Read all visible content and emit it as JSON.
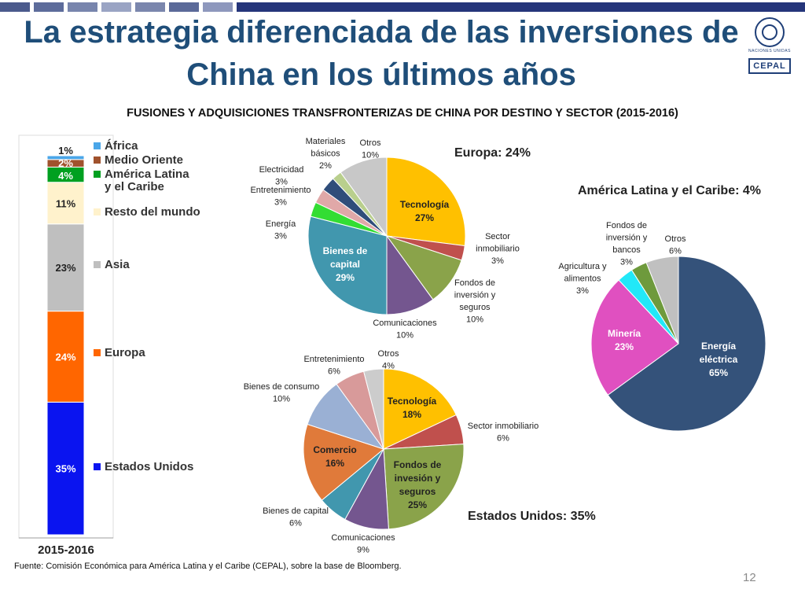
{
  "header": {
    "title_line1": "La estrategia diferenciada de las inversiones de",
    "title_line2": "China en los últimos años",
    "logo_text": "CEPAL",
    "un_text": "NACIONES UNIDAS"
  },
  "subtitle": "FUSIONES Y ADQUISICIONES TRANSFRONTERIZAS DE CHINA POR DESTINO  Y SECTOR (2015-2016)",
  "footer": {
    "source": "Fuente: Comisión Económica para América Latina y el Caribe (CEPAL), sobre la base de  Bloomberg.",
    "page": "12"
  },
  "colors": {
    "title": "#1f4e79",
    "bar_frame": "#1f4e79"
  },
  "chart_data": [
    {
      "type": "stacked-bar",
      "category": "2015-2016",
      "segments": [
        {
          "name": "Estados Unidos",
          "value": 35,
          "label": "35%",
          "color": "#0a14f0"
        },
        {
          "name": "Europa",
          "value": 24,
          "label": "24%",
          "color": "#ff6600"
        },
        {
          "name": "Asia",
          "value": 23,
          "label": "23%",
          "color": "#bfbfbf"
        },
        {
          "name": "Resto del mundo",
          "value": 11,
          "label": "11%",
          "color": "#fff2cc"
        },
        {
          "name": "América Latina y el Caribe",
          "value": 4,
          "label": "4%",
          "color": "#00a020"
        },
        {
          "name": "Medio Oriente",
          "value": 2,
          "label": "2%",
          "color": "#a0522d"
        },
        {
          "name": "África",
          "value": 1,
          "label": "1%",
          "color": "#4aa6e8"
        }
      ],
      "legend": [
        {
          "label": "África",
          "color": "#4aa6e8"
        },
        {
          "label": "Medio Oriente",
          "color": "#a0522d"
        },
        {
          "label_line1": "América Latina",
          "label_line2": "y el Caribe",
          "color": "#00a020"
        },
        {
          "label": "Resto del mundo",
          "color": "#fff2cc"
        },
        {
          "label": "Asia",
          "color": "#bfbfbf"
        },
        {
          "label": "Europa",
          "color": "#ff6600"
        },
        {
          "label": "Estados Unidos",
          "color": "#0a14f0"
        }
      ]
    },
    {
      "type": "pie",
      "title": "Europa: 24%",
      "slices": [
        {
          "name": "Tecnología",
          "value": 27,
          "color": "#ffc000",
          "label_lines": [
            "Tecnología",
            "27%"
          ],
          "inside": true,
          "bold": true
        },
        {
          "name": "Sector inmobiliario",
          "value": 3,
          "color": "#c0504d",
          "label_lines": [
            "Sector",
            "inmobiliario",
            "3%"
          ]
        },
        {
          "name": "Fondos de inversión y seguros",
          "value": 10,
          "color": "#8aa34a",
          "label_lines": [
            "Fondos de",
            "inversión y",
            "seguros",
            "10%"
          ]
        },
        {
          "name": "Comunicaciones",
          "value": 10,
          "color": "#74568f",
          "label_lines": [
            "Comunicaciones",
            "10%"
          ]
        },
        {
          "name": "Bienes de capital",
          "value": 29,
          "color": "#4197ae",
          "label_lines": [
            "Bienes de",
            "capital",
            "29%"
          ],
          "inside": true,
          "bold": true,
          "white": true
        },
        {
          "name": "Energía",
          "value": 3,
          "color": "#33dd33",
          "label_lines": [
            "Energía",
            "3%"
          ]
        },
        {
          "name": "Entretenimiento",
          "value": 3,
          "color": "#e0a8a8",
          "label_lines": [
            "Entretenimiento",
            "3%"
          ]
        },
        {
          "name": "Electricidad",
          "value": 3,
          "color": "#2f4d7a",
          "label_lines": [
            "Electricidad",
            "3%"
          ]
        },
        {
          "name": "Materiales básicos",
          "value": 2,
          "color": "#b9cf8d",
          "label_lines": [
            "Materiales",
            "básicos",
            "2%"
          ]
        },
        {
          "name": "Otros",
          "value": 10,
          "color": "#c8c8c8",
          "label_lines": [
            "Otros",
            "10%"
          ]
        }
      ]
    },
    {
      "type": "pie",
      "title": "América Latina y el Caribe: 4%",
      "slices": [
        {
          "name": "Energía eléctrica",
          "value": 65,
          "color": "#34527a",
          "label_lines": [
            "Energía",
            "eléctrica",
            "65%"
          ],
          "inside": true,
          "bold": true,
          "white": true
        },
        {
          "name": "Minería",
          "value": 23,
          "color": "#e050c0",
          "label_lines": [
            "Minería",
            "23%"
          ],
          "inside": true,
          "bold": true,
          "white": true
        },
        {
          "name": "Agricultura y alimentos",
          "value": 3,
          "color": "#22e8f8",
          "label_lines": [
            "Agricultura y",
            "alimentos",
            "3%"
          ]
        },
        {
          "name": "Fondos de inversión y bancos",
          "value": 3,
          "color": "#6e9a3c",
          "label_lines": [
            "Fondos de",
            "inversión y",
            "bancos",
            "3%"
          ]
        },
        {
          "name": "Otros",
          "value": 6,
          "color": "#c0c0c0",
          "label_lines": [
            "Otros",
            "6%"
          ]
        }
      ]
    },
    {
      "type": "pie",
      "title": "Estados Unidos: 35%",
      "slices": [
        {
          "name": "Tecnología",
          "value": 18,
          "color": "#ffc000",
          "label_lines": [
            "Tecnología",
            "18%"
          ],
          "inside": true,
          "bold": true
        },
        {
          "name": "Sector inmobiliario",
          "value": 6,
          "color": "#c0504d",
          "label_lines": [
            "Sector inmobiliario",
            "6%"
          ]
        },
        {
          "name": "Fondos de invesión y seguros",
          "value": 25,
          "color": "#8aa34a",
          "label_lines": [
            "Fondos de",
            "invesión y",
            "seguros",
            "25%"
          ],
          "inside": true,
          "bold": true
        },
        {
          "name": "Comunicaciones",
          "value": 9,
          "color": "#74568f",
          "label_lines": [
            "Comunicaciones",
            "9%"
          ]
        },
        {
          "name": "Bienes de capital",
          "value": 6,
          "color": "#4197ae",
          "label_lines": [
            "Bienes de capital",
            "6%"
          ]
        },
        {
          "name": "Comercio",
          "value": 16,
          "color": "#e07a3a",
          "label_lines": [
            "Comercio",
            "16%"
          ],
          "inside": true,
          "bold": true
        },
        {
          "name": "Bienes de consumo",
          "value": 10,
          "color": "#9ab0d4",
          "label_lines": [
            "Bienes de consumo",
            "10%"
          ]
        },
        {
          "name": "Entretenimiento",
          "value": 6,
          "color": "#d89a9a",
          "label_lines": [
            "Entretenimiento",
            "6%"
          ]
        },
        {
          "name": "Otros",
          "value": 4,
          "color": "#cccccc",
          "label_lines": [
            "Otros",
            "4%"
          ]
        }
      ]
    }
  ]
}
